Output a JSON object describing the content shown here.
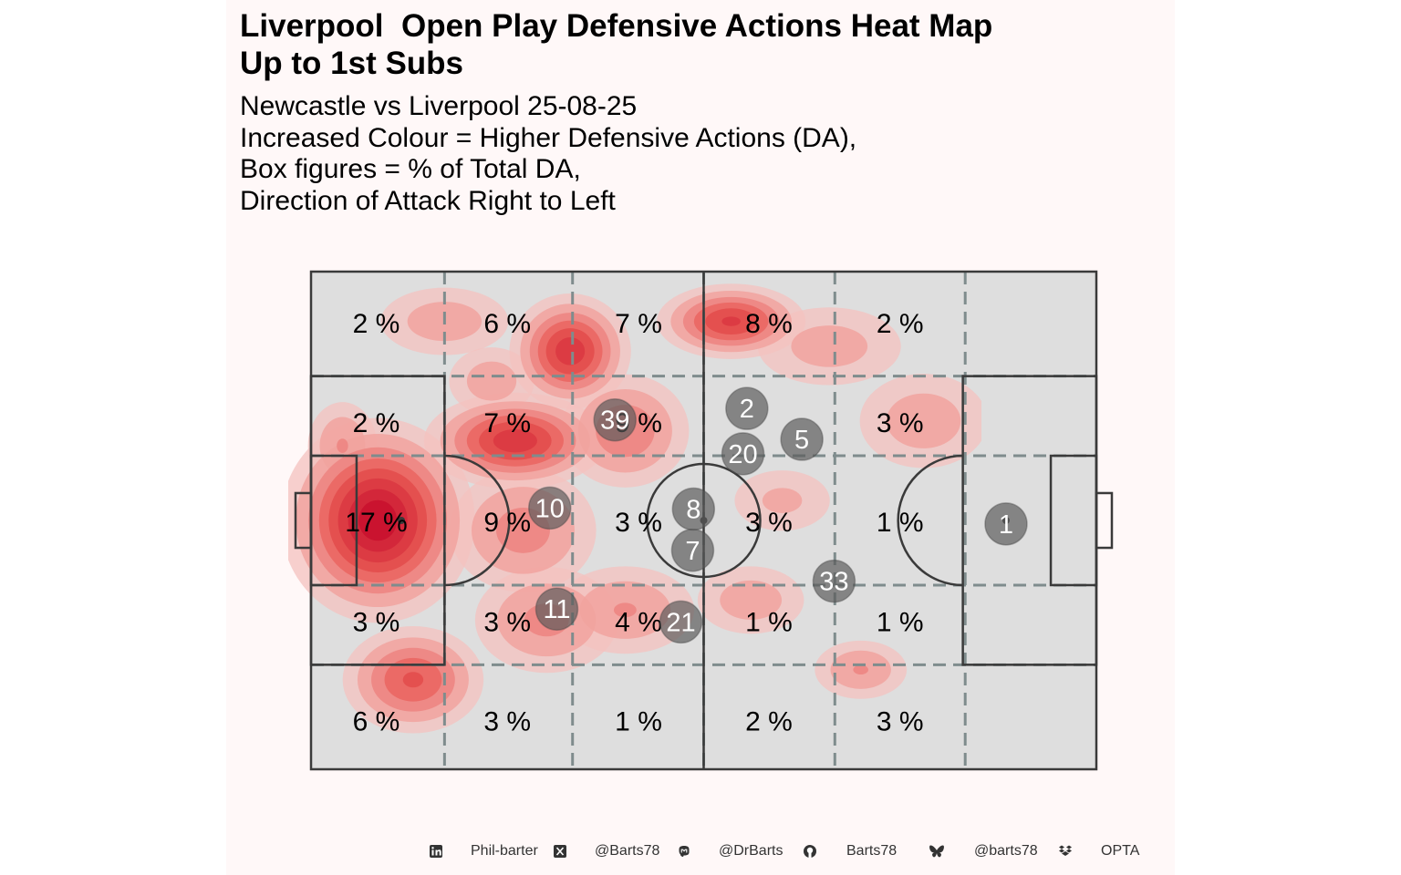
{
  "title": [
    "Liverpool  Open Play Defensive Actions Heat Map",
    "Up to 1st Subs"
  ],
  "subtitle": [
    "Newcastle vs Liverpool 25-08-25",
    "Increased Colour = Higher Defensive Actions (DA),",
    "Box figures = % of Total DA,",
    "Direction of Attack Right to Left"
  ],
  "colors": {
    "background": "#fff8f8",
    "pitch": "#dedede",
    "pitch_lines": "#3a3a3a",
    "zone_lines": "#7f8c8d",
    "heat_low": "#f4c2bf",
    "heat_high": "#c8102e",
    "player_marker": "#5a5a5a"
  },
  "chart_data": {
    "type": "heatmap",
    "title": "Liverpool  Open Play Defensive Actions Heat Map",
    "x_zones": 6,
    "y_zones": 5,
    "attack_direction": "right-to-left",
    "zone_percentages": [
      [
        "2 %",
        "6 %",
        "7 %",
        "8 %",
        "2 %",
        ""
      ],
      [
        "2 %",
        "7 %",
        "9 %",
        "",
        "3 %",
        ""
      ],
      [
        "17 %",
        "9 %",
        "3 %",
        "3 %",
        "1 %",
        ""
      ],
      [
        "3 %",
        "3 %",
        "4 %",
        "1 %",
        "1 %",
        ""
      ],
      [
        "6 %",
        "3 %",
        "1 %",
        "2 %",
        "3 %",
        ""
      ]
    ],
    "player_average_positions": [
      {
        "number": "1",
        "x": 88.5,
        "y": 50.7
      },
      {
        "number": "2",
        "x": 55.5,
        "y": 27.5
      },
      {
        "number": "5",
        "x": 62.5,
        "y": 33.7
      },
      {
        "number": "20",
        "x": 55.0,
        "y": 36.6
      },
      {
        "number": "33",
        "x": 66.6,
        "y": 62.2
      },
      {
        "number": "8",
        "x": 48.7,
        "y": 47.7
      },
      {
        "number": "7",
        "x": 48.6,
        "y": 56.0
      },
      {
        "number": "39",
        "x": 38.7,
        "y": 29.8
      },
      {
        "number": "10",
        "x": 30.4,
        "y": 47.5
      },
      {
        "number": "11",
        "x": 31.3,
        "y": 67.8
      },
      {
        "number": "21",
        "x": 47.1,
        "y": 70.4
      }
    ],
    "heat_density": [
      {
        "x": 8.5,
        "y": 50,
        "weight": 1.0,
        "sx": 6,
        "sy": 10
      },
      {
        "x": 26,
        "y": 34,
        "weight": 0.78,
        "sx": 6,
        "sy": 5
      },
      {
        "x": 33,
        "y": 16,
        "weight": 0.78,
        "sx": 4,
        "sy": 6
      },
      {
        "x": 53.5,
        "y": 10,
        "weight": 0.72,
        "sx": 5,
        "sy": 4
      },
      {
        "x": 13,
        "y": 82,
        "weight": 0.6,
        "sx": 5,
        "sy": 6
      },
      {
        "x": 40,
        "y": 32,
        "weight": 0.45,
        "sx": 5,
        "sy": 7
      },
      {
        "x": 27,
        "y": 52,
        "weight": 0.4,
        "sx": 6,
        "sy": 8
      },
      {
        "x": 30,
        "y": 70,
        "weight": 0.38,
        "sx": 6,
        "sy": 7
      },
      {
        "x": 40,
        "y": 68,
        "weight": 0.35,
        "sx": 6,
        "sy": 6
      },
      {
        "x": 70,
        "y": 80,
        "weight": 0.35,
        "sx": 4,
        "sy": 4
      },
      {
        "x": 78,
        "y": 30,
        "weight": 0.3,
        "sx": 6,
        "sy": 7
      },
      {
        "x": 17,
        "y": 10,
        "weight": 0.3,
        "sx": 6,
        "sy": 5
      },
      {
        "x": 66,
        "y": 15,
        "weight": 0.28,
        "sx": 7,
        "sy": 6
      },
      {
        "x": 4,
        "y": 35,
        "weight": 0.35,
        "sx": 3,
        "sy": 6
      },
      {
        "x": 56,
        "y": 66,
        "weight": 0.3,
        "sx": 5,
        "sy": 5
      },
      {
        "x": 60,
        "y": 46,
        "weight": 0.25,
        "sx": 5,
        "sy": 5
      },
      {
        "x": 23,
        "y": 22,
        "weight": 0.3,
        "sx": 4,
        "sy": 5
      }
    ]
  },
  "footer": [
    {
      "icon": "linkedin-icon",
      "text": "Phil-barter"
    },
    {
      "icon": "x-icon",
      "text": "@Barts78"
    },
    {
      "icon": "mastodon-icon",
      "text": "@DrBarts"
    },
    {
      "icon": "github-icon",
      "text": "Barts78"
    },
    {
      "icon": "bluesky-icon",
      "text": "@barts78"
    },
    {
      "icon": "dropbox-icon",
      "text": "OPTA"
    }
  ]
}
